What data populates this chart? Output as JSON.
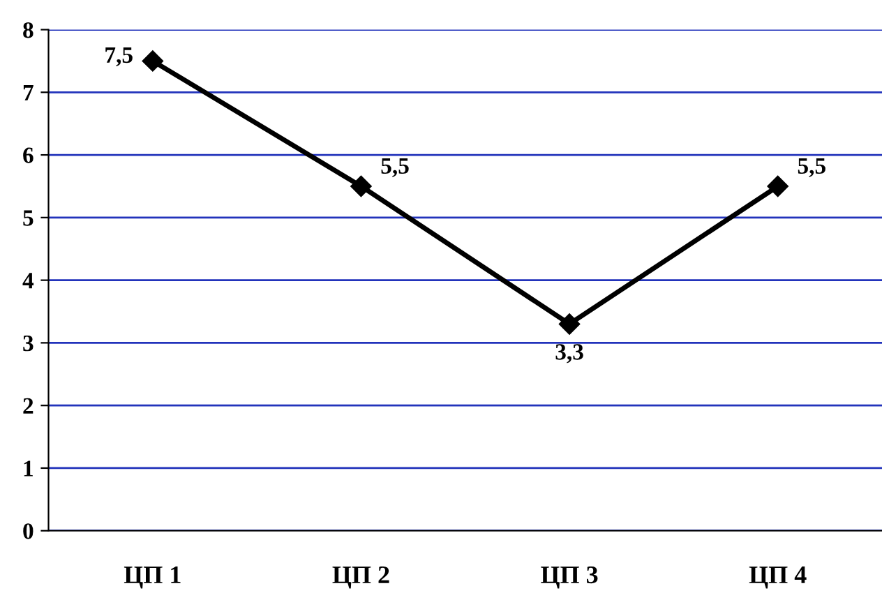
{
  "chart_data": {
    "type": "line",
    "categories": [
      "ЦП 1",
      "ЦП 2",
      "ЦП 3",
      "ЦП 4"
    ],
    "series": [
      {
        "color": "#000000",
        "values": [
          7.5,
          5.5,
          3.3,
          5.5
        ],
        "value_labels": [
          "7,5",
          "5,5",
          "3,3",
          "5,5"
        ]
      }
    ],
    "ylim": [
      0,
      8
    ],
    "yticks": [
      0,
      1,
      2,
      3,
      4,
      5,
      6,
      7,
      8
    ],
    "grid": "y",
    "marker": "diamond",
    "line_style": "solid",
    "legend": false
  }
}
